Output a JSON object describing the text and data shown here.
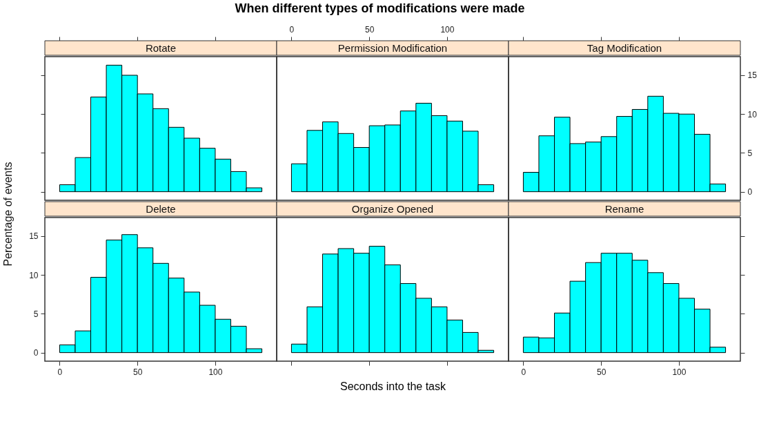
{
  "chart_data": [
    {
      "type": "histogram",
      "title": "Rotate",
      "ylabel": "Percentage of events",
      "color": "#00ffff",
      "bins": [
        0,
        10,
        20,
        30,
        40,
        50,
        60,
        70,
        80,
        90,
        100,
        110,
        120,
        130
      ],
      "values": [
        0.9,
        4.4,
        12.2,
        16.3,
        15.0,
        12.6,
        10.7,
        8.3,
        6.9,
        5.6,
        4.2,
        2.6,
        0.5
      ],
      "xlim": [
        -9.5,
        139.5
      ],
      "xticks": [
        0,
        50,
        100
      ],
      "ylim": [
        -1.1,
        17.4
      ],
      "yticks": [
        0,
        5,
        10,
        15
      ],
      "tick_labels": false
    },
    {
      "type": "histogram",
      "subtitle": "When different types of modifications were made",
      "title": "Permission Modification",
      "color": "#00ffff",
      "bins": [
        0,
        10,
        20,
        30,
        40,
        50,
        60,
        70,
        80,
        90,
        100,
        110,
        120,
        130
      ],
      "values": [
        3.6,
        7.9,
        9.0,
        7.5,
        5.7,
        8.5,
        8.6,
        10.4,
        11.4,
        9.8,
        9.1,
        7.8,
        0.9
      ],
      "xlim": [
        -9.5,
        139.5
      ],
      "xticks": [
        0,
        50,
        100
      ],
      "ylim": [
        -1.1,
        17.4
      ],
      "tick_labels": "x"
    },
    {
      "type": "histogram",
      "title": "Tag Modification",
      "color": "#00ffff",
      "bins": [
        0,
        10,
        20,
        30,
        40,
        50,
        60,
        70,
        80,
        90,
        100,
        110,
        120,
        130
      ],
      "values": [
        2.5,
        7.2,
        9.6,
        6.2,
        6.4,
        7.1,
        9.7,
        10.6,
        12.3,
        10.1,
        10.0,
        7.4,
        1.0
      ],
      "xlim": [
        -9.5,
        139.5
      ],
      "xticks": [
        0,
        50,
        100
      ],
      "ylim": [
        -1.1,
        17.4
      ],
      "yticks": [
        0,
        5,
        10,
        15
      ],
      "tick_labels": "y"
    },
    {
      "type": "histogram",
      "title": "Delete",
      "color": "#00ffff",
      "bins": [
        0,
        10,
        20,
        30,
        40,
        50,
        60,
        70,
        80,
        90,
        100,
        110,
        120,
        130
      ],
      "values": [
        1.0,
        2.8,
        9.7,
        14.5,
        15.2,
        13.5,
        11.5,
        9.6,
        7.8,
        6.1,
        4.3,
        3.4,
        0.5
      ],
      "xlim": [
        -9.5,
        139.5
      ],
      "xticks": [
        0,
        50,
        100
      ],
      "ylim": [
        -1.1,
        17.4
      ],
      "yticks": [
        0,
        5,
        10,
        15
      ]
    },
    {
      "type": "histogram",
      "title": "Organize Opened",
      "xlabel": "Seconds into the task",
      "color": "#00ffff",
      "bins": [
        0,
        10,
        20,
        30,
        40,
        50,
        60,
        70,
        80,
        90,
        100,
        110,
        120,
        130
      ],
      "values": [
        1.1,
        5.9,
        12.7,
        13.4,
        12.8,
        13.7,
        11.3,
        8.9,
        7.0,
        5.9,
        4.2,
        2.6,
        0.3
      ],
      "xlim": [
        -9.5,
        139.5
      ],
      "xticks": [
        0,
        50,
        100
      ],
      "ylim": [
        -1.1,
        17.4
      ],
      "tick_labels": false
    },
    {
      "type": "histogram",
      "title": "Rename",
      "color": "#00ffff",
      "bins": [
        0,
        10,
        20,
        30,
        40,
        50,
        60,
        70,
        80,
        90,
        100,
        110,
        120,
        130
      ],
      "values": [
        2.0,
        1.9,
        5.1,
        9.2,
        11.6,
        12.8,
        12.8,
        11.9,
        10.3,
        8.9,
        7.0,
        5.6,
        0.7
      ],
      "xlim": [
        -9.5,
        139.5
      ],
      "xticks": [
        0,
        50,
        100
      ],
      "ylim": [
        -1.1,
        17.4
      ],
      "yticks": [
        0,
        5,
        10,
        15
      ],
      "tick_labels": "x"
    }
  ]
}
